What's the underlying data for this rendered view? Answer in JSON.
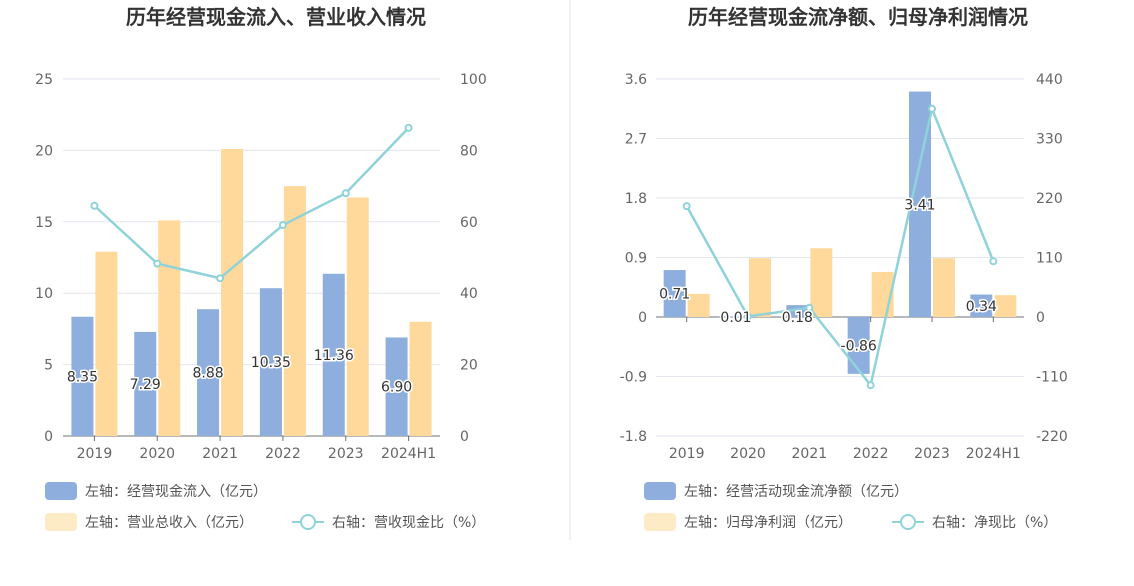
{
  "colors": {
    "bar1": "#8eaedd",
    "bar2": "#ffd99b",
    "bar2_legend": "#fdebc6",
    "line": "#8fd3d9",
    "grid": "#e3e6ef",
    "axis": "#6e7079",
    "divider": "#e6e6e6"
  },
  "chart_data": [
    {
      "type": "bar",
      "title": "历年经营现金流入、营业收入情况",
      "categories": [
        "2019",
        "2020",
        "2021",
        "2022",
        "2023",
        "2024H1"
      ],
      "y_left": {
        "min": 0,
        "max": 25,
        "ticks": [
          "0",
          "5",
          "10",
          "15",
          "20",
          "25"
        ]
      },
      "y_right": {
        "min": 0,
        "max": 100,
        "ticks": [
          "0",
          "20",
          "40",
          "60",
          "80",
          "100"
        ]
      },
      "series": [
        {
          "name": "经营现金流入",
          "axis": "left",
          "kind": "bar",
          "values": [
            8.35,
            7.29,
            8.88,
            10.35,
            11.36,
            6.9
          ],
          "labels": [
            "8.35",
            "7.29",
            "8.88",
            "10.35",
            "11.36",
            "6.90"
          ]
        },
        {
          "name": "营业总收入",
          "axis": "left",
          "kind": "bar",
          "values": [
            12.9,
            15.1,
            20.1,
            17.5,
            16.7,
            8.0
          ]
        },
        {
          "name": "营收现金比",
          "axis": "right",
          "kind": "line",
          "values": [
            64.5,
            48.3,
            44.2,
            59.1,
            68.0,
            86.3
          ]
        }
      ],
      "legend": [
        {
          "text": "左轴：经营现金流入（亿元）",
          "marker": "bar1"
        },
        {
          "text": "左轴：营业总收入（亿元）",
          "marker": "bar2"
        },
        {
          "text": "右轴：营收现金比（%）",
          "marker": "line"
        }
      ]
    },
    {
      "type": "bar",
      "title": "历年经营现金流净额、归母净利润情况",
      "categories": [
        "2019",
        "2020",
        "2021",
        "2022",
        "2023",
        "2024H1"
      ],
      "y_left": {
        "min": -1.8,
        "max": 3.6,
        "ticks": [
          "-1.8",
          "-0.9",
          "0",
          "0.9",
          "1.8",
          "2.7",
          "3.6"
        ]
      },
      "y_right": {
        "min": -220,
        "max": 440,
        "ticks": [
          "-220",
          "-110",
          "0",
          "110",
          "220",
          "330",
          "440"
        ]
      },
      "series": [
        {
          "name": "经营活动现金流净额",
          "axis": "left",
          "kind": "bar",
          "values": [
            0.71,
            0.01,
            0.18,
            -0.86,
            3.41,
            0.34
          ],
          "labels": [
            "0.71",
            "0.01",
            "0.18",
            "-0.86",
            "3.41",
            "0.34"
          ]
        },
        {
          "name": "归母净利润",
          "axis": "left",
          "kind": "bar",
          "values": [
            0.35,
            0.89,
            1.04,
            0.68,
            0.89,
            0.33
          ]
        },
        {
          "name": "净现比",
          "axis": "right",
          "kind": "line",
          "values": [
            205,
            1,
            17,
            -126,
            385,
            103
          ]
        }
      ],
      "legend": [
        {
          "text": "左轴：经营活动现金流净额（亿元）",
          "marker": "bar1"
        },
        {
          "text": "左轴：归母净利润（亿元）",
          "marker": "bar2"
        },
        {
          "text": "右轴：净现比（%）",
          "marker": "line"
        }
      ]
    }
  ]
}
